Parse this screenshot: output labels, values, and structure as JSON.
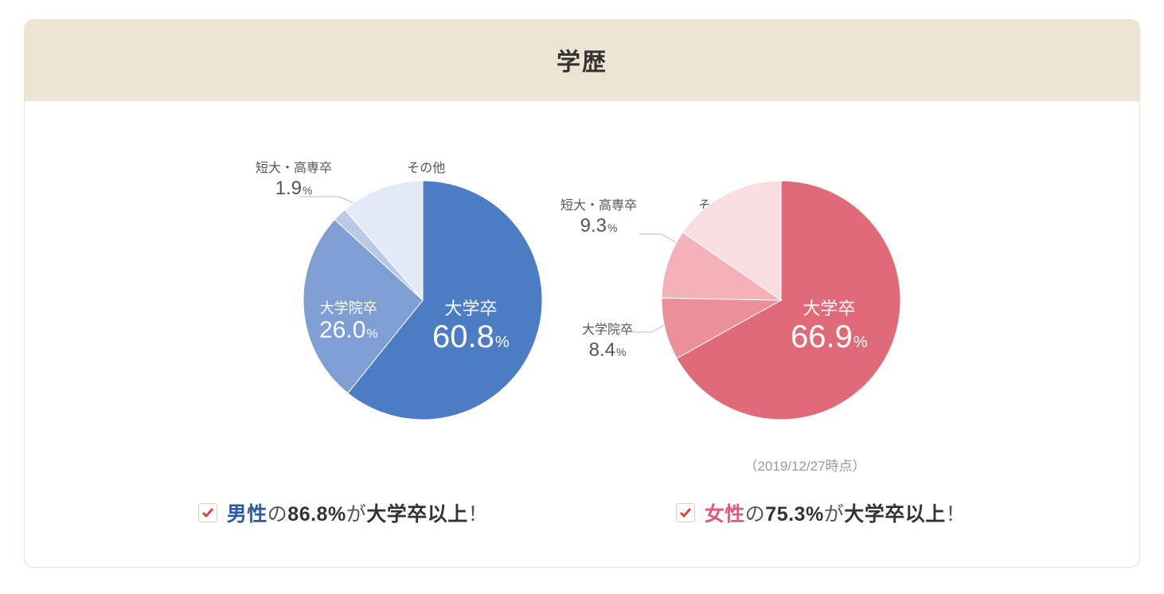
{
  "title": "学歴",
  "timestamp": "（2019/12/27時点）",
  "pie_radius": 150,
  "background_color": "#ffffff",
  "header_bg": "#eee4d4",
  "male_chart": {
    "type": "pie",
    "start_angle_deg": 0,
    "slices": [
      {
        "category": "大学卒",
        "value": 60.8,
        "color": "#4b7cc4",
        "label_mode": "inside"
      },
      {
        "category": "大学院卒",
        "value": 26.0,
        "color": "#7f9fd4",
        "label_mode": "inside"
      },
      {
        "category": "短大・高専卒",
        "value": 1.9,
        "color": "#b9c9e6",
        "label_mode": "outside"
      },
      {
        "category": "その他",
        "value": 11.3,
        "color": "#e3e9f5",
        "label_mode": "outside"
      }
    ]
  },
  "female_chart": {
    "type": "pie",
    "start_angle_deg": 0,
    "slices": [
      {
        "category": "大学卒",
        "value": 66.9,
        "color": "#e06b78",
        "label_mode": "inside"
      },
      {
        "category": "大学院卒",
        "value": 8.4,
        "color": "#eb9098",
        "label_mode": "outside"
      },
      {
        "category": "短大・高専卒",
        "value": 9.3,
        "color": "#f3b2b7",
        "label_mode": "outside"
      },
      {
        "category": "その他",
        "value": 15.4,
        "color": "#fadde0",
        "label_mode": "outside"
      }
    ]
  },
  "male_ext_labels": {
    "grad": {
      "cat": "大学院卒",
      "val": "26.0",
      "pct": "%"
    },
    "junior": {
      "cat": "短大・高専卒",
      "val": "1.9",
      "pct": "%"
    },
    "other": {
      "cat": "その他",
      "val": "11.3",
      "pct": "%"
    }
  },
  "male_in_label": {
    "cat": "大学卒",
    "val": "60.8",
    "pct": "%"
  },
  "female_ext_labels": {
    "grad": {
      "cat": "大学院卒",
      "val": "8.4",
      "pct": "%"
    },
    "junior": {
      "cat": "短大・高専卒",
      "val": "9.3",
      "pct": "%"
    },
    "other": {
      "cat": "その他",
      "val": "15.4",
      "pct": "%"
    }
  },
  "female_in_label": {
    "cat": "大学卒",
    "val": "66.9",
    "pct": "%"
  },
  "callouts": {
    "male": {
      "who": "男性",
      "pre": "の",
      "pct": "86.8%",
      "mid": "が",
      "what": "大学卒以上",
      "exc": "！"
    },
    "female": {
      "who": "女性",
      "pre": "の",
      "pct": "75.3%",
      "mid": "が",
      "what": "大学卒以上",
      "exc": "！"
    }
  }
}
